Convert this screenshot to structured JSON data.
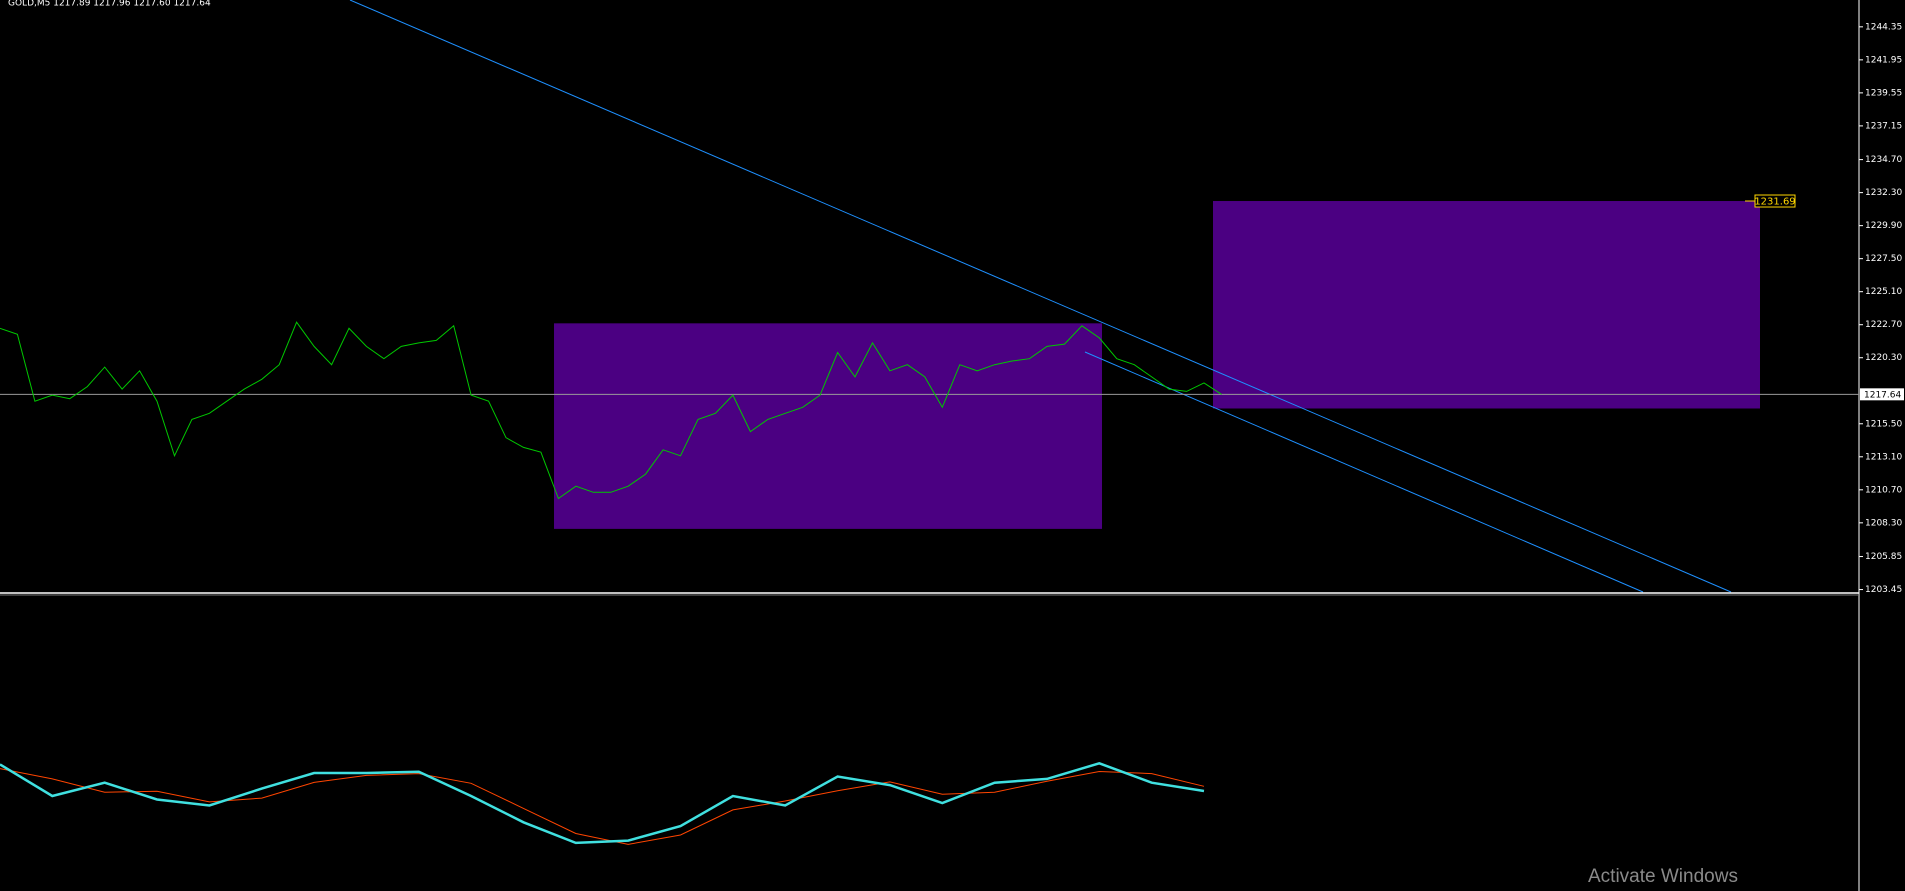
{
  "chart_data": [
    {
      "type": "line",
      "title": "GOLD,M5  1217.89 1217.96 1217.60 1217.64",
      "color": "#00c800",
      "ylim": [
        1203.2,
        1246.3
      ],
      "yticks": [
        1244.35,
        1241.95,
        1239.55,
        1237.15,
        {
          "value": 1234.7,
          "label": "1234.70"
        },
        {
          "value": 1232.3,
          "label": "1232.30"
        },
        {
          "value": 1229.9,
          "label": "1229.90"
        },
        {
          "value": 1227.5,
          "label": "1227.50"
        },
        {
          "value": 1225.1,
          "label": "1225.10"
        },
        {
          "value": 1222.7,
          "label": "1222.70"
        },
        {
          "value": 1220.3,
          "label": "1220.30"
        },
        {
          "value": 1215.5,
          "label": "1215.50"
        },
        {
          "value": 1213.1,
          "label": "1213.10"
        },
        {
          "value": 1210.7,
          "label": "1210.70"
        },
        {
          "value": 1208.3,
          "label": "1208.30"
        },
        1205.85,
        1203.45
      ],
      "values": [
        1222.44,
        1222.0,
        1217.14,
        1217.58,
        1217.32,
        1218.2,
        1219.62,
        1218.02,
        1219.35,
        1217.14,
        1213.17,
        1215.82,
        1216.26,
        1217.14,
        1218.02,
        1218.73,
        1219.79,
        1222.88,
        1221.12,
        1219.79,
        1222.44,
        1221.12,
        1220.23,
        1221.12,
        1221.38,
        1221.56,
        1222.62,
        1217.58,
        1217.14,
        1214.49,
        1213.78,
        1213.43,
        1210.07,
        1210.96,
        1210.52,
        1210.52,
        1210.96,
        1211.84,
        1213.61,
        1213.17,
        1215.82,
        1216.26,
        1217.58,
        1214.93,
        1215.82,
        1216.26,
        1216.7,
        1217.58,
        1220.68,
        1218.91,
        1221.38,
        1219.35,
        1219.79,
        1218.91,
        1216.7,
        1219.79,
        1219.35,
        1219.79,
        1220.06,
        1220.23,
        1221.12,
        1221.29,
        1222.62,
        1221.74,
        1220.23,
        1219.79,
        1218.91,
        1218.02,
        1217.85,
        1218.47,
        1217.64
      ],
      "current_price": 1217.64,
      "zones": [
        {
          "top": 1222.8,
          "bottom": 1207.86,
          "color": "#4b0082"
        },
        {
          "top": 1231.69,
          "bottom": 1216.61,
          "color": "#4b0082"
        }
      ]
    },
    {
      "type": "line",
      "ylim": [
        0,
        100
      ],
      "series": [
        {
          "color": "#ff4500",
          "values": [
            41.5,
            38.0,
            33.5,
            33.8,
            30.2,
            31.5,
            36.8,
            39.2,
            39.8,
            36.5,
            28.0,
            19.5,
            15.8,
            19.0,
            27.5,
            30.5,
            34.0,
            37.0,
            32.8,
            33.5,
            37.2,
            40.5,
            39.8,
            35.5
          ]
        },
        {
          "color": "#40e0e0",
          "values": [
            42.9,
            32.2,
            36.7,
            31.0,
            29.0,
            34.7,
            40.0,
            40.0,
            40.4,
            32.2,
            23.3,
            16.3,
            17.1,
            22.0,
            32.2,
            29.0,
            38.8,
            35.9,
            29.8,
            36.7,
            38.0,
            43.3,
            36.7,
            33.9
          ]
        }
      ]
    }
  ]
}
